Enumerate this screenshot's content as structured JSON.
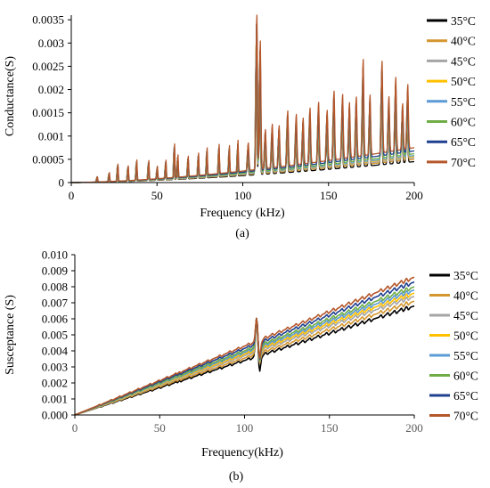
{
  "chart_data": [
    {
      "type": "line",
      "panel_label": "(a)",
      "xlabel": "Frequency (kHz)",
      "ylabel": "Conductance(S)",
      "xlim": [
        0,
        200
      ],
      "ylim": [
        0,
        0.0036
      ],
      "x_ticks": [
        "0",
        "50",
        "100",
        "150",
        "200"
      ],
      "y_ticks": [
        "0",
        "0.0005",
        "0.001",
        "0.0015",
        "0.002",
        "0.0025",
        "0.003",
        "0.0035"
      ],
      "grid": false,
      "legend_position": "right",
      "peaks": [
        {
          "f": 15,
          "g": 0.00012
        },
        {
          "f": 22,
          "g": 0.0002
        },
        {
          "f": 27,
          "g": 0.00038
        },
        {
          "f": 33,
          "g": 0.00033
        },
        {
          "f": 38,
          "g": 0.00045
        },
        {
          "f": 45,
          "g": 0.00042
        },
        {
          "f": 50,
          "g": 0.00028
        },
        {
          "f": 55,
          "g": 0.0004
        },
        {
          "f": 60,
          "g": 0.00075
        },
        {
          "f": 62,
          "g": 0.0005
        },
        {
          "f": 68,
          "g": 0.00045
        },
        {
          "f": 74,
          "g": 0.0005
        },
        {
          "f": 79,
          "g": 0.0006
        },
        {
          "f": 86,
          "g": 0.00065
        },
        {
          "f": 92,
          "g": 0.0006
        },
        {
          "f": 97,
          "g": 0.0007
        },
        {
          "f": 103,
          "g": 0.0006
        },
        {
          "f": 108,
          "g": 0.00345
        },
        {
          "f": 110,
          "g": 0.0028
        },
        {
          "f": 113,
          "g": 0.00085
        },
        {
          "f": 117,
          "g": 0.00095
        },
        {
          "f": 121,
          "g": 0.0009
        },
        {
          "f": 126,
          "g": 0.0012
        },
        {
          "f": 131,
          "g": 0.0011
        },
        {
          "f": 135,
          "g": 0.001
        },
        {
          "f": 139,
          "g": 0.0012
        },
        {
          "f": 144,
          "g": 0.0013
        },
        {
          "f": 149,
          "g": 0.0011
        },
        {
          "f": 153,
          "g": 0.0015
        },
        {
          "f": 158,
          "g": 0.0014
        },
        {
          "f": 162,
          "g": 0.0012
        },
        {
          "f": 166,
          "g": 0.0013
        },
        {
          "f": 170,
          "g": 0.0021
        },
        {
          "f": 174,
          "g": 0.0013
        },
        {
          "f": 181,
          "g": 0.002
        },
        {
          "f": 185,
          "g": 0.0012
        },
        {
          "f": 189,
          "g": 0.0016
        },
        {
          "f": 193,
          "g": 0.001
        },
        {
          "f": 196,
          "g": 0.0014
        }
      ],
      "series": [
        {
          "name": "35°C",
          "color": "#000000",
          "baseline_200khz": 0.00045,
          "peak_scale": 0.9
        },
        {
          "name": "40°C",
          "color": "#d4962e",
          "baseline_200khz": 0.0005,
          "peak_scale": 0.92
        },
        {
          "name": "45°C",
          "color": "#a5a5a5",
          "baseline_200khz": 0.00053,
          "peak_scale": 0.94
        },
        {
          "name": "50°C",
          "color": "#ffc000",
          "baseline_200khz": 0.00056,
          "peak_scale": 0.95
        },
        {
          "name": "55°C",
          "color": "#5b9bd5",
          "baseline_200khz": 0.00058,
          "peak_scale": 0.96
        },
        {
          "name": "60°C",
          "color": "#70ad47",
          "baseline_200khz": 0.00062,
          "peak_scale": 0.97
        },
        {
          "name": "65°C",
          "color": "#1f3f8f",
          "baseline_200khz": 0.00068,
          "peak_scale": 0.98
        },
        {
          "name": "70°C",
          "color": "#b5572a",
          "baseline_200khz": 0.00075,
          "peak_scale": 1.0
        }
      ]
    },
    {
      "type": "line",
      "panel_label": "(b)",
      "xlabel": "Frequency(kHz)",
      "ylabel": "Susceptance (S)",
      "xlim": [
        0,
        200
      ],
      "ylim": [
        0,
        0.01
      ],
      "x_ticks": [
        "0",
        "50",
        "100",
        "150",
        "200"
      ],
      "y_ticks": [
        "0.000",
        "0.001",
        "0.002",
        "0.003",
        "0.004",
        "0.005",
        "0.006",
        "0.007",
        "0.008",
        "0.009",
        "0.010"
      ],
      "grid": false,
      "legend_position": "right",
      "resonance": {
        "f": 108,
        "high": 0.0061,
        "low": 0.0026
      },
      "series": [
        {
          "name": "35°C",
          "color": "#000000",
          "b_at_200khz": 0.0068
        },
        {
          "name": "40°C",
          "color": "#d4962e",
          "b_at_200khz": 0.0071
        },
        {
          "name": "45°C",
          "color": "#a5a5a5",
          "b_at_200khz": 0.0074
        },
        {
          "name": "50°C",
          "color": "#ffc000",
          "b_at_200khz": 0.0076
        },
        {
          "name": "55°C",
          "color": "#5b9bd5",
          "b_at_200khz": 0.0078
        },
        {
          "name": "60°C",
          "color": "#70ad47",
          "b_at_200khz": 0.008
        },
        {
          "name": "65°C",
          "color": "#1f3f8f",
          "b_at_200khz": 0.0083
        },
        {
          "name": "70°C",
          "color": "#b5572a",
          "b_at_200khz": 0.0086
        }
      ]
    }
  ]
}
